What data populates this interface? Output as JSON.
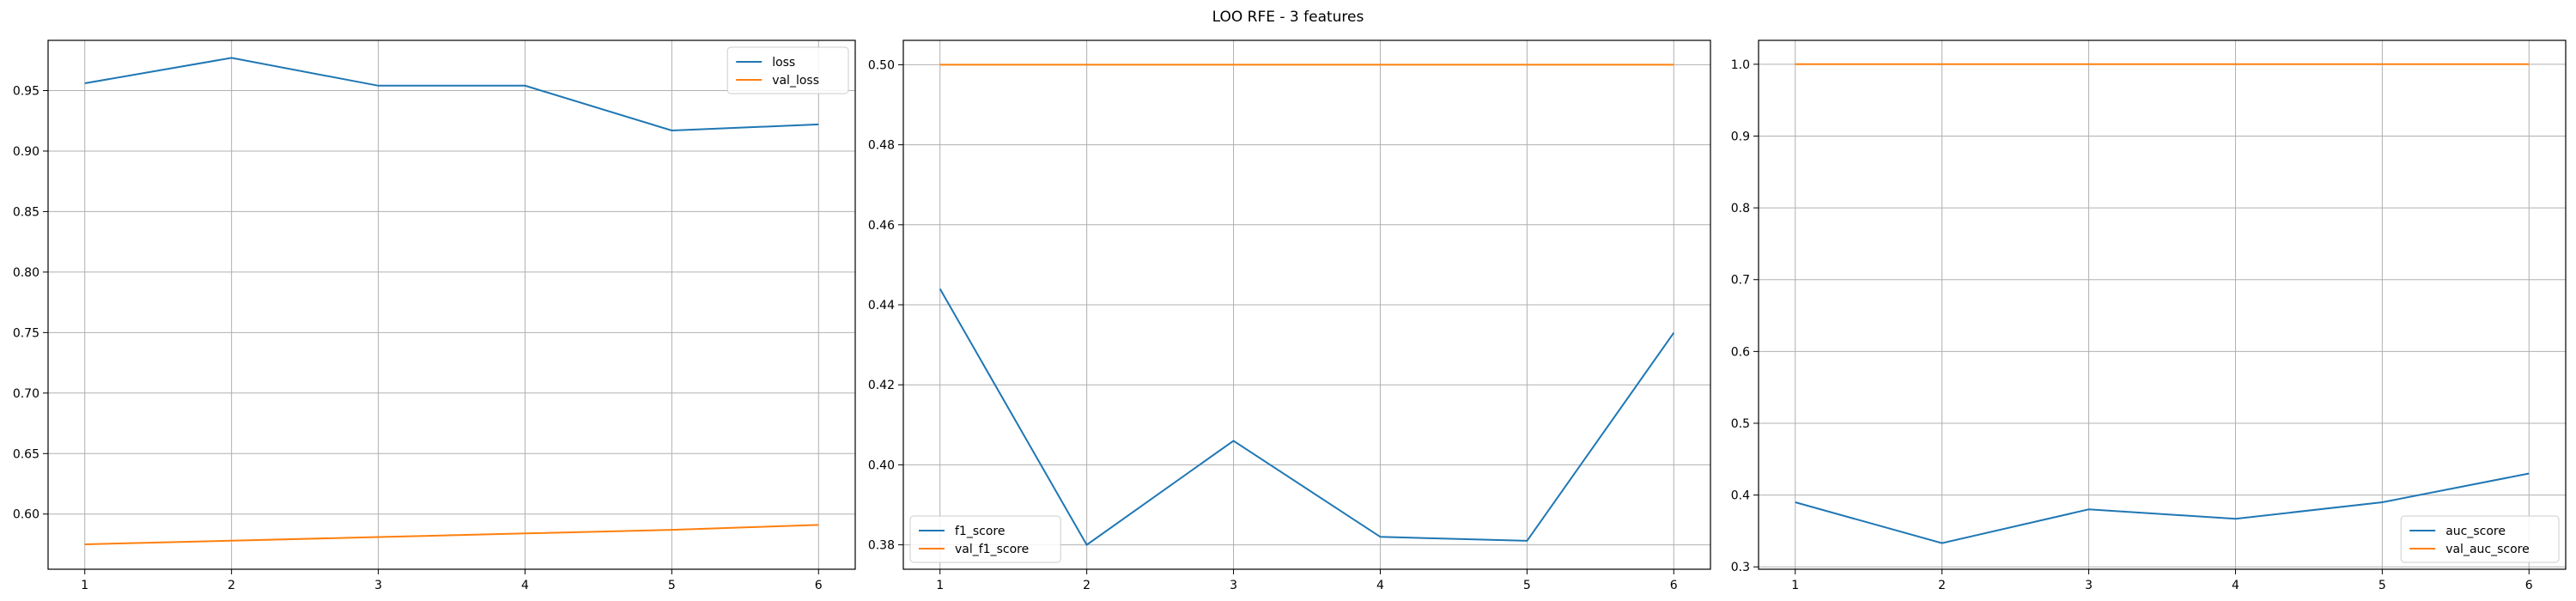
{
  "figure": {
    "title": "LOO RFE - 3 features"
  },
  "chart_data": [
    {
      "type": "line",
      "x": [
        1,
        2,
        3,
        4,
        5,
        6
      ],
      "xlim": [
        0.75,
        6.25
      ],
      "ylim": [
        0.5544,
        0.9915
      ],
      "yticks": [
        0.6,
        0.65,
        0.7,
        0.75,
        0.8,
        0.85,
        0.9,
        0.95
      ],
      "grid": true,
      "legend": "upper right",
      "series": [
        {
          "name": "loss",
          "color": "#1f77b4",
          "values": [
            0.956,
            0.977,
            0.954,
            0.954,
            0.917,
            0.922
          ]
        },
        {
          "name": "val_loss",
          "color": "#ff7f0e",
          "values": [
            0.575,
            0.578,
            0.581,
            0.584,
            0.587,
            0.591
          ]
        }
      ]
    },
    {
      "type": "line",
      "x": [
        1,
        2,
        3,
        4,
        5,
        6
      ],
      "xlim": [
        0.75,
        6.25
      ],
      "ylim": [
        0.3739,
        0.5061
      ],
      "yticks": [
        0.38,
        0.4,
        0.42,
        0.44,
        0.46,
        0.48,
        0.5
      ],
      "grid": true,
      "legend": "lower left",
      "series": [
        {
          "name": "f1_score",
          "color": "#1f77b4",
          "values": [
            0.444,
            0.38,
            0.406,
            0.382,
            0.381,
            0.433
          ]
        },
        {
          "name": "val_f1_score",
          "color": "#ff7f0e",
          "values": [
            0.5,
            0.5,
            0.5,
            0.5,
            0.5,
            0.5
          ]
        }
      ]
    },
    {
      "type": "line",
      "x": [
        1,
        2,
        3,
        4,
        5,
        6
      ],
      "xlim": [
        0.75,
        6.25
      ],
      "ylim": [
        0.2967,
        1.0333
      ],
      "yticks": [
        0.3,
        0.4,
        0.5,
        0.6,
        0.7,
        0.8,
        0.9,
        1.0
      ],
      "grid": true,
      "legend": "lower right",
      "series": [
        {
          "name": "auc_score",
          "color": "#1f77b4",
          "values": [
            0.39,
            0.333,
            0.38,
            0.367,
            0.39,
            0.43
          ]
        },
        {
          "name": "val_auc_score",
          "color": "#ff7f0e",
          "values": [
            1.0,
            1.0,
            1.0,
            1.0,
            1.0,
            1.0
          ]
        }
      ]
    }
  ]
}
